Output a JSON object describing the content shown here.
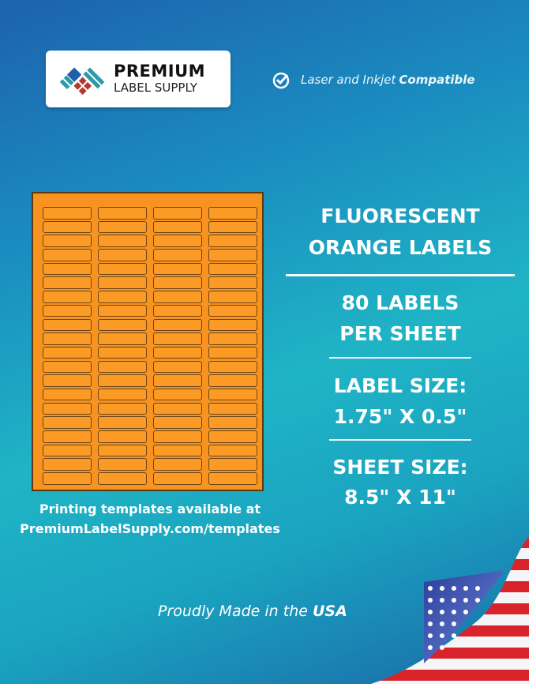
{
  "brand": {
    "line1": "PREMIUM",
    "line2": "LABEL SUPPLY"
  },
  "compat": {
    "text": "Laser and Inkjet",
    "bold": "Compatible",
    "icon": "check-circle-icon"
  },
  "product": {
    "title1": "FLUORESCENT",
    "title2": "ORANGE LABELS",
    "count1": "80 LABELS",
    "count2": "PER SHEET",
    "size_label": "LABEL SIZE:",
    "size_value": "1.75\" X 0.5\"",
    "sheet_label": "SHEET SIZE:",
    "sheet_value": "8.5\" X 11\""
  },
  "sheet": {
    "columns": 4,
    "rows": 20,
    "label_color": "#f7931e"
  },
  "templates": {
    "line1": "Printing templates available at",
    "line2": "PremiumLabelSupply.com/templates"
  },
  "footer": {
    "text": "Proudly Made in the",
    "bold": "USA"
  }
}
